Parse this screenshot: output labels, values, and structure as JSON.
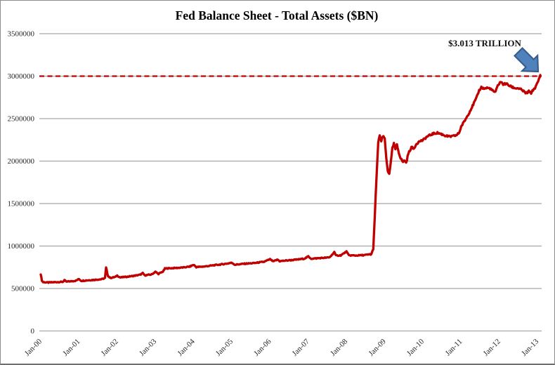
{
  "chart_data": {
    "type": "line",
    "title": "Fed Balance Sheet - Total Assets ($BN)",
    "annotation": "$3.013 TRILLION",
    "grid": true,
    "legend_position": "none",
    "ylim": [
      0,
      3500000
    ],
    "y_ticks": [
      0,
      500000,
      1000000,
      1500000,
      2000000,
      2500000,
      3000000,
      3500000
    ],
    "x_tick_labels": [
      "Jan-00",
      "Jan-01",
      "Jan-02",
      "Jan-03",
      "Jan-04",
      "Jan-05",
      "Jan-06",
      "Jan-07",
      "Jan-08",
      "Jan-09",
      "Jan-10",
      "Jan-11",
      "Jan-12",
      "Jan-13"
    ],
    "x_tick_years": [
      2000,
      2001,
      2002,
      2003,
      2004,
      2005,
      2006,
      2007,
      2008,
      2009,
      2010,
      2011,
      2012,
      2013
    ],
    "threshold": {
      "value": 3000000,
      "style": "dashed"
    },
    "series": [
      {
        "name": "Total Assets",
        "points": [
          [
            2000.0,
            670000
          ],
          [
            2000.03,
            595000
          ],
          [
            2000.06,
            575000
          ],
          [
            2000.2,
            570000
          ],
          [
            2000.4,
            575000
          ],
          [
            2000.58,
            578000
          ],
          [
            2000.62,
            600000
          ],
          [
            2000.66,
            580000
          ],
          [
            2000.8,
            585000
          ],
          [
            2000.92,
            592000
          ],
          [
            2001.0,
            612000
          ],
          [
            2001.06,
            590000
          ],
          [
            2001.2,
            596000
          ],
          [
            2001.4,
            602000
          ],
          [
            2001.6,
            610000
          ],
          [
            2001.68,
            622000
          ],
          [
            2001.71,
            745000
          ],
          [
            2001.76,
            648000
          ],
          [
            2001.82,
            625000
          ],
          [
            2001.95,
            635000
          ],
          [
            2002.0,
            652000
          ],
          [
            2002.08,
            630000
          ],
          [
            2002.25,
            638000
          ],
          [
            2002.45,
            650000
          ],
          [
            2002.6,
            662000
          ],
          [
            2002.67,
            680000
          ],
          [
            2002.72,
            655000
          ],
          [
            2002.9,
            665000
          ],
          [
            2003.0,
            697000
          ],
          [
            2003.08,
            672000
          ],
          [
            2003.2,
            700000
          ],
          [
            2003.25,
            735000
          ],
          [
            2003.35,
            738000
          ],
          [
            2003.55,
            742000
          ],
          [
            2003.75,
            748000
          ],
          [
            2003.9,
            758000
          ],
          [
            2004.0,
            779000
          ],
          [
            2004.07,
            752000
          ],
          [
            2004.3,
            760000
          ],
          [
            2004.55,
            775000
          ],
          [
            2004.8,
            788000
          ],
          [
            2005.0,
            803000
          ],
          [
            2005.08,
            780000
          ],
          [
            2005.3,
            790000
          ],
          [
            2005.6,
            800000
          ],
          [
            2005.85,
            815000
          ],
          [
            2006.0,
            845000
          ],
          [
            2006.08,
            818000
          ],
          [
            2006.2,
            840000
          ],
          [
            2006.25,
            822000
          ],
          [
            2006.45,
            830000
          ],
          [
            2006.7,
            840000
          ],
          [
            2006.9,
            852000
          ],
          [
            2007.0,
            877000
          ],
          [
            2007.08,
            850000
          ],
          [
            2007.3,
            858000
          ],
          [
            2007.55,
            865000
          ],
          [
            2007.62,
            895000
          ],
          [
            2007.68,
            930000
          ],
          [
            2007.72,
            888000
          ],
          [
            2007.85,
            890000
          ],
          [
            2008.0,
            935000
          ],
          [
            2008.06,
            890000
          ],
          [
            2008.25,
            888000
          ],
          [
            2008.45,
            893000
          ],
          [
            2008.6,
            900000
          ],
          [
            2008.65,
            905000
          ],
          [
            2008.7,
            960000
          ],
          [
            2008.74,
            1350000
          ],
          [
            2008.78,
            1750000
          ],
          [
            2008.83,
            2210000
          ],
          [
            2008.87,
            2310000
          ],
          [
            2008.91,
            2230000
          ],
          [
            2008.95,
            2290000
          ],
          [
            2009.0,
            2270000
          ],
          [
            2009.04,
            2040000
          ],
          [
            2009.08,
            1880000
          ],
          [
            2009.12,
            1855000
          ],
          [
            2009.16,
            1990000
          ],
          [
            2009.2,
            2150000
          ],
          [
            2009.24,
            2205000
          ],
          [
            2009.28,
            2140000
          ],
          [
            2009.32,
            2190000
          ],
          [
            2009.37,
            2100000
          ],
          [
            2009.42,
            2030000
          ],
          [
            2009.48,
            1990000
          ],
          [
            2009.52,
            2010000
          ],
          [
            2009.56,
            1978000
          ],
          [
            2009.62,
            2090000
          ],
          [
            2009.7,
            2165000
          ],
          [
            2009.76,
            2142000
          ],
          [
            2009.83,
            2205000
          ],
          [
            2009.92,
            2235000
          ],
          [
            2010.0,
            2245000
          ],
          [
            2010.1,
            2285000
          ],
          [
            2010.25,
            2320000
          ],
          [
            2010.38,
            2333000
          ],
          [
            2010.48,
            2318000
          ],
          [
            2010.58,
            2300000
          ],
          [
            2010.68,
            2288000
          ],
          [
            2010.78,
            2292000
          ],
          [
            2010.88,
            2305000
          ],
          [
            2010.95,
            2335000
          ],
          [
            2011.0,
            2405000
          ],
          [
            2011.1,
            2480000
          ],
          [
            2011.2,
            2562000
          ],
          [
            2011.3,
            2650000
          ],
          [
            2011.4,
            2742000
          ],
          [
            2011.47,
            2832000
          ],
          [
            2011.53,
            2870000
          ],
          [
            2011.6,
            2852000
          ],
          [
            2011.68,
            2862000
          ],
          [
            2011.76,
            2855000
          ],
          [
            2011.84,
            2822000
          ],
          [
            2011.9,
            2812000
          ],
          [
            2011.96,
            2890000
          ],
          [
            2012.03,
            2935000
          ],
          [
            2012.1,
            2905000
          ],
          [
            2012.18,
            2912000
          ],
          [
            2012.28,
            2882000
          ],
          [
            2012.4,
            2860000
          ],
          [
            2012.5,
            2856000
          ],
          [
            2012.6,
            2835000
          ],
          [
            2012.7,
            2795000
          ],
          [
            2012.77,
            2820000
          ],
          [
            2012.83,
            2802000
          ],
          [
            2012.9,
            2848000
          ],
          [
            2012.95,
            2872000
          ],
          [
            2013.0,
            2925000
          ],
          [
            2013.04,
            2970000
          ],
          [
            2013.07,
            3013000
          ]
        ]
      }
    ]
  },
  "colors": {
    "line": "#C00000",
    "threshold": "#C00000",
    "grid": "#A6A6A6",
    "text": "#262626",
    "arrow_fill": "#4F81BD",
    "arrow_stroke": "#385D8A",
    "background": "#FFFFFF"
  }
}
